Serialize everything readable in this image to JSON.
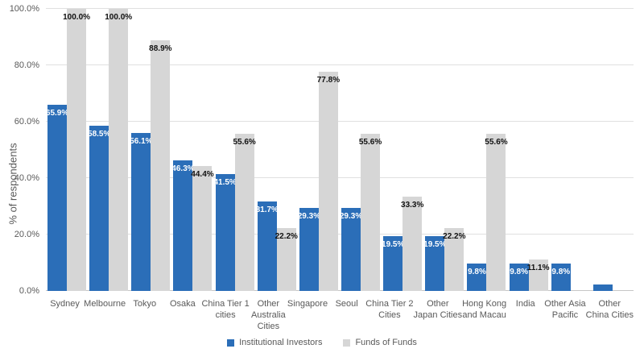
{
  "chart_data": {
    "type": "bar",
    "title": "",
    "xlabel": "",
    "ylabel": "% of respondents",
    "ylim": [
      0,
      100
    ],
    "grid": true,
    "legend_position": "bottom",
    "yticks": [
      0,
      20,
      40,
      60,
      80,
      100
    ],
    "ytick_labels": [
      "0.0%",
      "20.0%",
      "40.0%",
      "60.0%",
      "80.0%",
      "100.0%"
    ],
    "categories": [
      "Sydney",
      "Melbourne",
      "Tokyo",
      "Osaka",
      "China Tier 1\ncities",
      "Other\nAustralia\nCities",
      "Singapore",
      "Seoul",
      "China Tier 2\nCities",
      "Other\nJapan Cities",
      "Hong Kong\nand Macau",
      "India",
      "Other Asia\nPacific",
      "Other\nChina Cities"
    ],
    "series": [
      {
        "name": "Institutional Investors",
        "color": "#2b6eb8",
        "label_color": "#ffffff",
        "values": [
          65.9,
          58.5,
          56.1,
          46.3,
          41.5,
          31.7,
          29.3,
          29.3,
          19.5,
          19.5,
          9.8,
          9.8,
          9.8,
          2.4
        ],
        "labels": [
          "65.9%",
          "58.5%",
          "56.1%",
          "46.3%",
          "41.5%",
          "31.7%",
          "29.3%",
          "29.3%",
          "19.5%",
          "19.5%",
          "9.8%",
          "9.8%",
          "9.8%",
          ""
        ]
      },
      {
        "name": "Funds of Funds",
        "color": "#d6d6d6",
        "label_color": "#111111",
        "values": [
          100.0,
          100.0,
          88.9,
          44.4,
          55.6,
          22.2,
          77.8,
          55.6,
          33.3,
          22.2,
          55.6,
          11.1,
          0,
          0
        ],
        "labels": [
          "100.0%",
          "100.0%",
          "88.9%",
          "44.4%",
          "55.6%",
          "22.2%",
          "77.8%",
          "55.6%",
          "33.3%",
          "22.2%",
          "55.6%",
          "11.1%",
          "",
          ""
        ]
      }
    ]
  }
}
